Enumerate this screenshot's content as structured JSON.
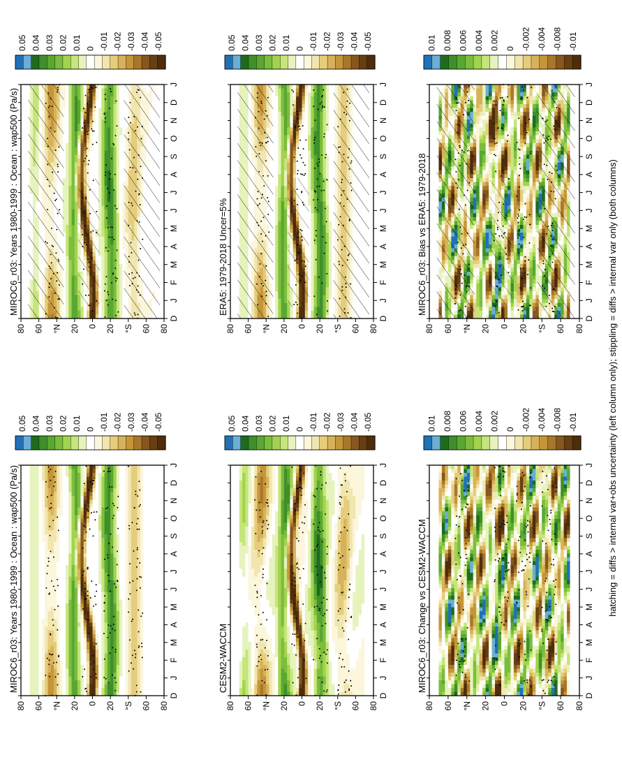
{
  "footer": "hatching = diffs > internal var+obs uncertainty (left column only); stippling = diffs > internal var only (both columns)",
  "palette": [
    "#2171b5",
    "#6baed6",
    "#1e6b1e",
    "#3f8f2a",
    "#5aa832",
    "#7cbd3e",
    "#a1d34f",
    "#c6e57a",
    "#e6f3bd",
    "#ffffff",
    "#fbf6dc",
    "#f1e6b0",
    "#e6cd7c",
    "#d8b25a",
    "#c59639",
    "#a8772a",
    "#86581d",
    "#673f12",
    "#4d2d0b"
  ],
  "months": [
    "D",
    "J",
    "F",
    "M",
    "A",
    "M",
    "J",
    "J",
    "A",
    "S",
    "O",
    "N",
    "D",
    "J"
  ],
  "lat_ticks": [
    "80",
    "60",
    "°N",
    "20",
    "0",
    "20",
    "°S",
    "60",
    "80"
  ],
  "colorbars": {
    "main": [
      "0.05",
      "0.04",
      "0.03",
      "0.02",
      "0.01",
      "0",
      "-0.01",
      "-0.02",
      "-0.03",
      "-0.04",
      "-0.05"
    ],
    "diff": [
      "0.01",
      "0.008",
      "0.006",
      "0.004",
      "0.002",
      "0",
      "-0.002",
      "-0.004",
      "-0.008",
      "-0.01"
    ]
  },
  "chart_data": [
    {
      "type": "heatmap",
      "title": "MIROC6_r03: Years 1980-1999 : Ocean : wap500 (Pa/s)",
      "x": [
        "D",
        "J",
        "F",
        "M",
        "A",
        "M",
        "J",
        "J",
        "A",
        "S",
        "O",
        "N",
        "D",
        "J"
      ],
      "y_ticks": [
        "80",
        "60",
        "°N",
        "20",
        "0",
        "20",
        "°S",
        "60",
        "80"
      ],
      "colorbar": "main",
      "hatching": false
    },
    {
      "type": "heatmap",
      "title": "MIROC6_r03: Years 1980-1999 : Ocean : wap500 (Pa/s)",
      "x": [
        "D",
        "J",
        "F",
        "M",
        "A",
        "M",
        "J",
        "J",
        "A",
        "S",
        "O",
        "N",
        "D",
        "J"
      ],
      "y_ticks": [
        "80",
        "60",
        "°N",
        "20",
        "0",
        "20",
        "°S",
        "60",
        "80"
      ],
      "colorbar": "main",
      "hatching": true
    },
    {
      "type": "heatmap",
      "title": "CESM2-WACCM",
      "x": [
        "D",
        "J",
        "F",
        "M",
        "A",
        "M",
        "J",
        "J",
        "A",
        "S",
        "O",
        "N",
        "D",
        "J"
      ],
      "y_ticks": [
        "80",
        "60",
        "°N",
        "20",
        "0",
        "20",
        "°S",
        "60",
        "80"
      ],
      "colorbar": "main",
      "hatching": false
    },
    {
      "type": "heatmap",
      "title": "ERA5: 1979-2018 Uncer=5%",
      "x": [
        "D",
        "J",
        "F",
        "M",
        "A",
        "M",
        "J",
        "J",
        "A",
        "S",
        "O",
        "N",
        "D",
        "J"
      ],
      "y_ticks": [
        "80",
        "60",
        "°N",
        "20",
        "0",
        "20",
        "°S",
        "60",
        "80"
      ],
      "colorbar": "main",
      "hatching": true
    },
    {
      "type": "heatmap",
      "title": "MIROC6_r03: Change vs CESM2-WACCM",
      "x": [
        "D",
        "J",
        "F",
        "M",
        "A",
        "M",
        "J",
        "J",
        "A",
        "S",
        "O",
        "N",
        "D",
        "J"
      ],
      "y_ticks": [
        "80",
        "60",
        "°N",
        "20",
        "0",
        "20",
        "°S",
        "60",
        "80"
      ],
      "colorbar": "diff",
      "hatching": false
    },
    {
      "type": "heatmap",
      "title": "MIROC6_r03: Bias vs ERA5: 1979-2018",
      "x": [
        "D",
        "J",
        "F",
        "M",
        "A",
        "M",
        "J",
        "J",
        "A",
        "S",
        "O",
        "N",
        "D",
        "J"
      ],
      "y_ticks": [
        "80",
        "60",
        "°N",
        "20",
        "0",
        "20",
        "°S",
        "60",
        "80"
      ],
      "colorbar": "diff",
      "hatching": true
    }
  ]
}
